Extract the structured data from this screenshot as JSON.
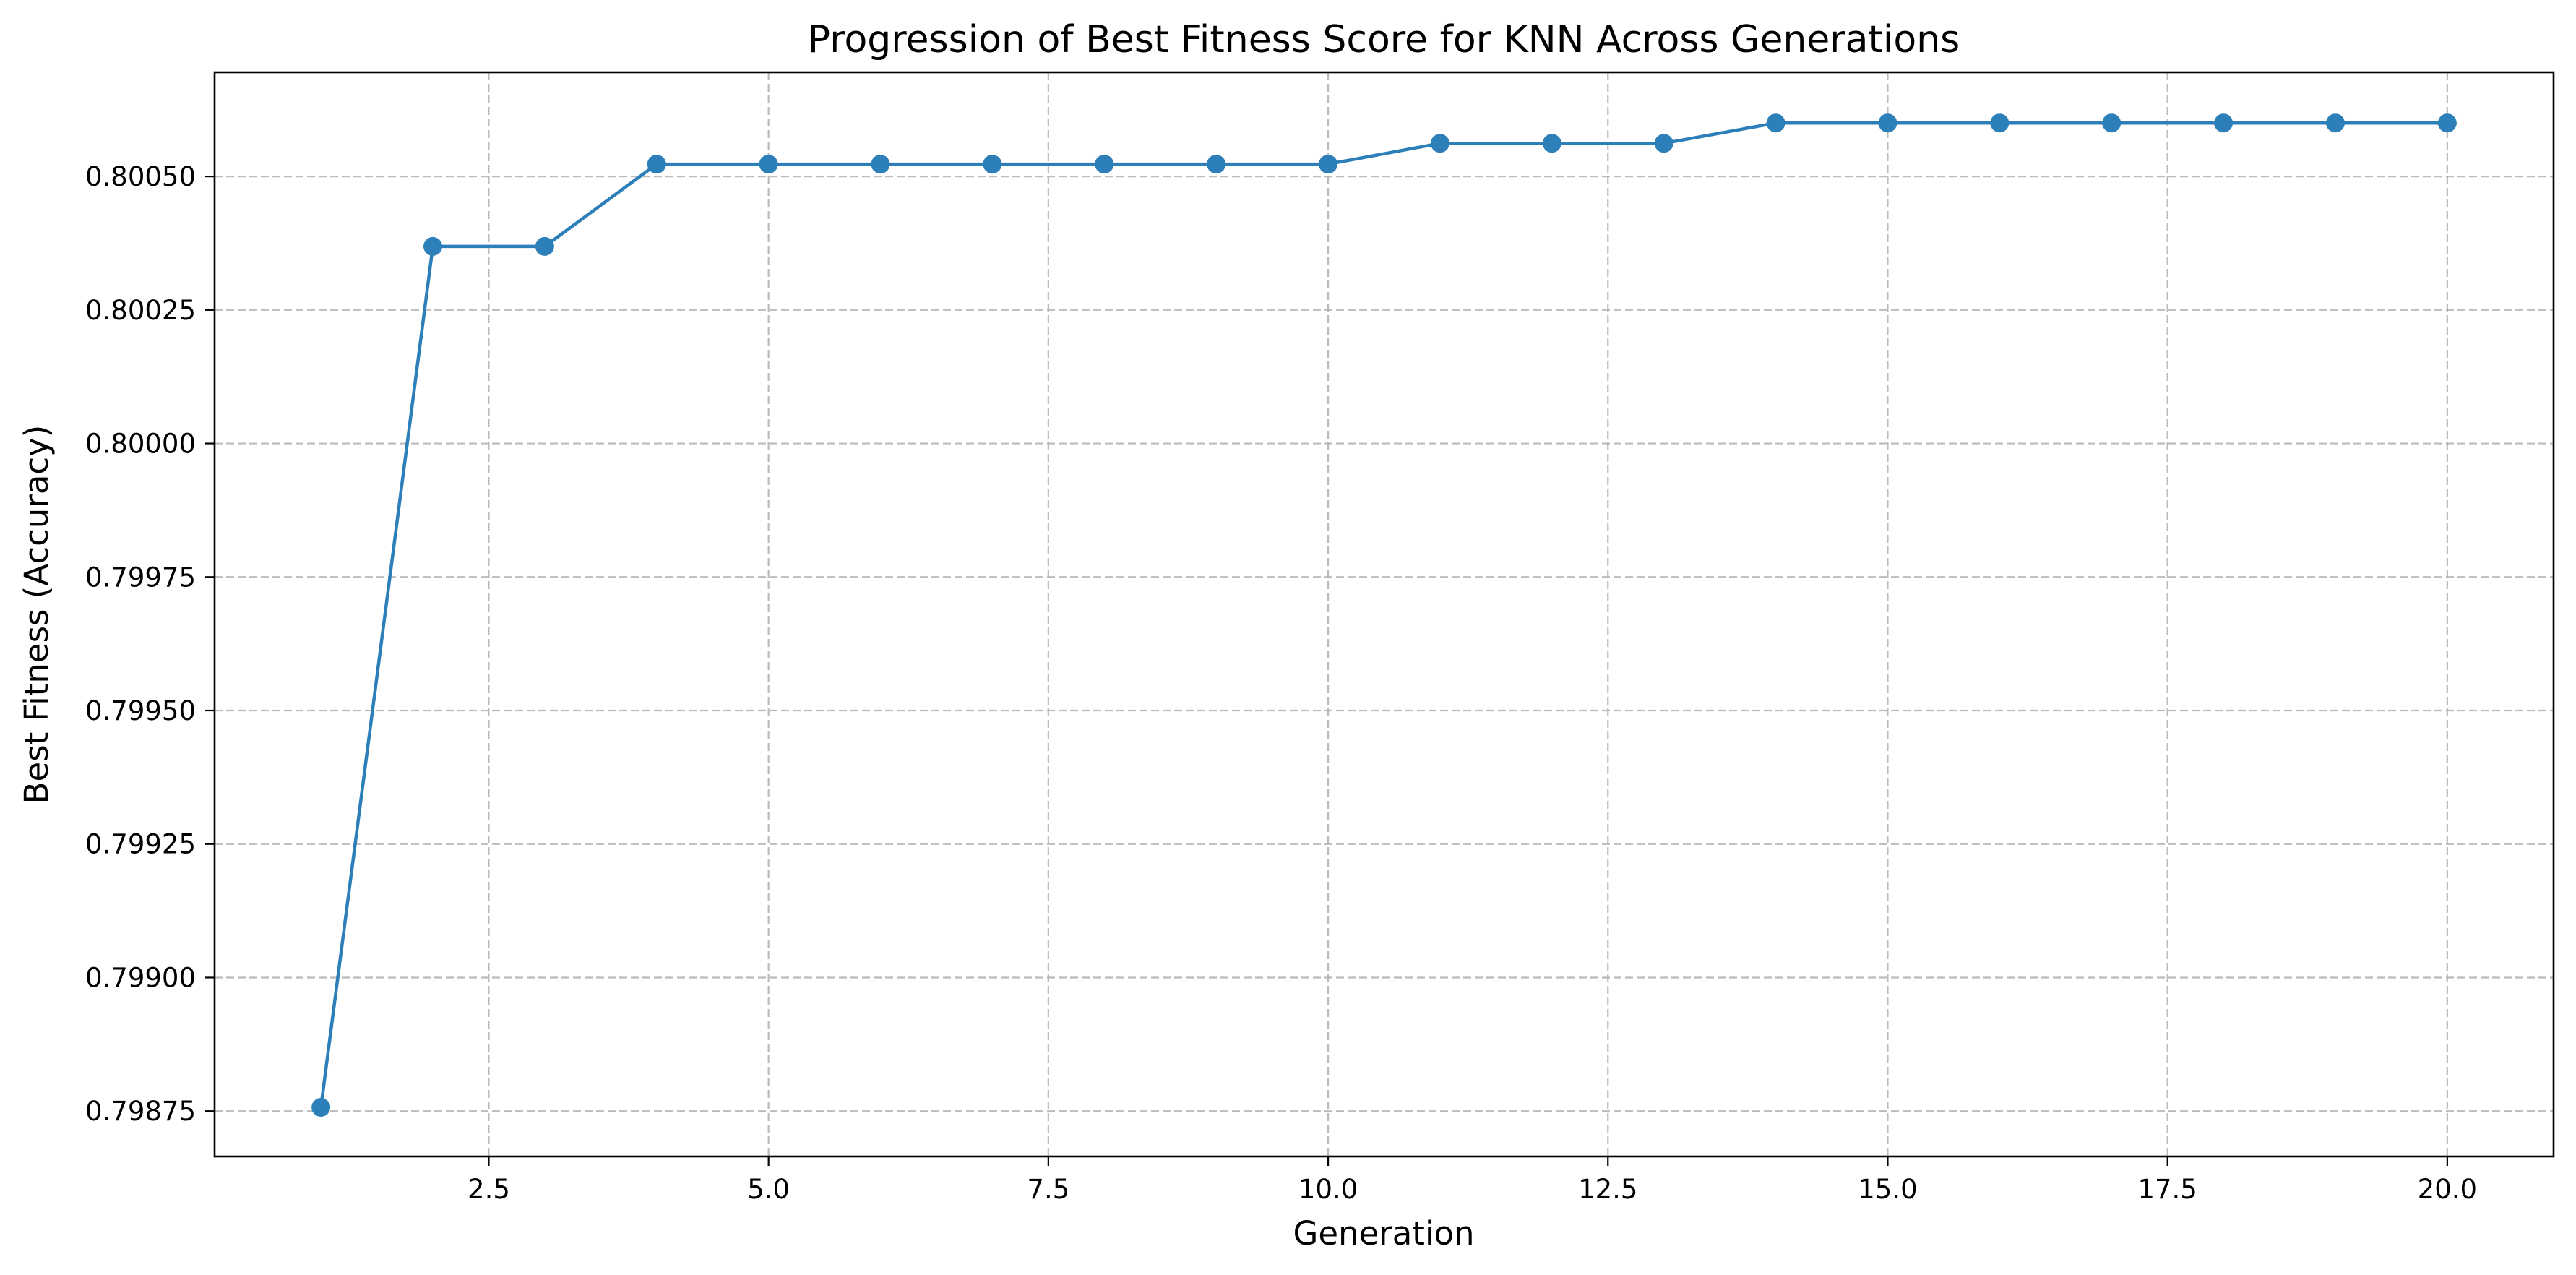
{
  "chart_data": {
    "type": "line",
    "title": "Progression of Best Fitness Score for KNN Across Generations",
    "xlabel": "Generation",
    "ylabel": "Best Fitness (Accuracy)",
    "xlim": [
      0.05,
      20.95
    ],
    "ylim": [
      0.798665,
      0.800695
    ],
    "grid": true,
    "legend": "none",
    "line_color": "#2c7fb8",
    "x_ticks": [
      {
        "value": 2.5,
        "label": "2.5"
      },
      {
        "value": 5.0,
        "label": "5.0"
      },
      {
        "value": 7.5,
        "label": "7.5"
      },
      {
        "value": 10.0,
        "label": "10.0"
      },
      {
        "value": 12.5,
        "label": "12.5"
      },
      {
        "value": 15.0,
        "label": "15.0"
      },
      {
        "value": 17.5,
        "label": "17.5"
      },
      {
        "value": 20.0,
        "label": "20.0"
      }
    ],
    "y_ticks": [
      {
        "value": 0.79875,
        "label": "0.79875"
      },
      {
        "value": 0.799,
        "label": "0.79900"
      },
      {
        "value": 0.79925,
        "label": "0.79925"
      },
      {
        "value": 0.7995,
        "label": "0.79950"
      },
      {
        "value": 0.79975,
        "label": "0.79975"
      },
      {
        "value": 0.8,
        "label": "0.80000"
      },
      {
        "value": 0.80025,
        "label": "0.80025"
      },
      {
        "value": 0.8005,
        "label": "0.80050"
      }
    ],
    "series": [
      {
        "x": [
          1,
          2,
          3,
          4,
          5,
          6,
          7,
          8,
          9,
          10,
          11,
          12,
          13,
          14,
          15,
          16,
          17,
          18,
          19,
          20
        ],
        "y": [
          0.798757,
          0.800369,
          0.800369,
          0.800523,
          0.800523,
          0.800523,
          0.800523,
          0.800523,
          0.800523,
          0.800523,
          0.800562,
          0.800562,
          0.800562,
          0.8006,
          0.8006,
          0.8006,
          0.8006,
          0.8006,
          0.8006,
          0.8006
        ]
      }
    ]
  }
}
